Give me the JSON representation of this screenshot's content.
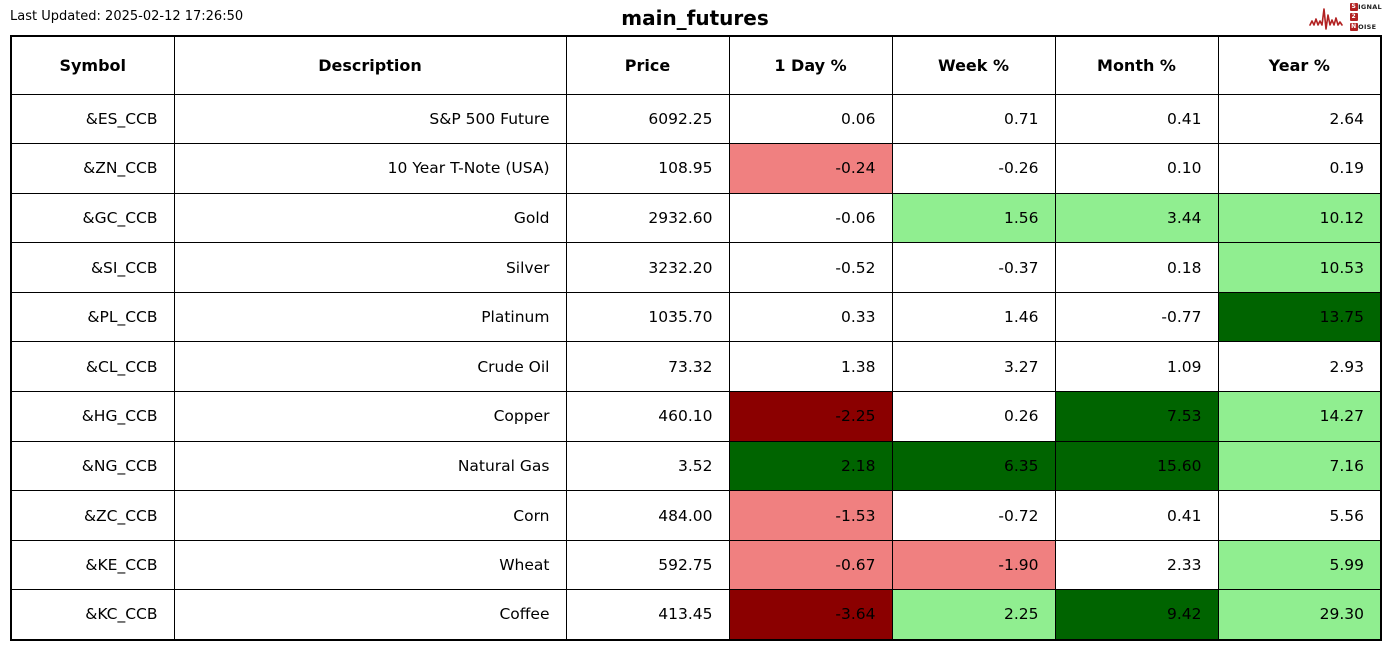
{
  "header": {
    "last_updated": "Last Updated: 2025-02-12 17:26:50",
    "logo": {
      "line1_box": "S",
      "line1_rest": "IGNAL",
      "line2_box": "2",
      "line3_box": "N",
      "line3_rest": "OISE"
    }
  },
  "colors": {
    "white": "#FFFFFF",
    "light_red": "#F08080",
    "dark_red": "#8B0000",
    "light_green": "#90EE90",
    "dark_green": "#006400",
    "logo_red": "#B22222",
    "border": "#000000"
  },
  "chart_data": {
    "type": "table",
    "title": "main_futures",
    "columns": [
      "Symbol",
      "Description",
      "Price",
      "1 Day %",
      "Week %",
      "Month %",
      "Year %"
    ],
    "value_columns": [
      "1 Day %",
      "Week %",
      "Month %",
      "Year %"
    ],
    "rows": [
      {
        "symbol": "&ES_CCB",
        "description": "S&P 500 Future",
        "price": "6092.25",
        "values": [
          "0.06",
          "0.71",
          "0.41",
          "2.64"
        ],
        "value_colors": [
          "white",
          "white",
          "white",
          "white"
        ]
      },
      {
        "symbol": "&ZN_CCB",
        "description": "10 Year T-Note (USA)",
        "price": "108.95",
        "values": [
          "-0.24",
          "-0.26",
          "0.10",
          "0.19"
        ],
        "value_colors": [
          "light_red",
          "white",
          "white",
          "white"
        ]
      },
      {
        "symbol": "&GC_CCB",
        "description": "Gold",
        "price": "2932.60",
        "values": [
          "-0.06",
          "1.56",
          "3.44",
          "10.12"
        ],
        "value_colors": [
          "white",
          "light_green",
          "light_green",
          "light_green"
        ]
      },
      {
        "symbol": "&SI_CCB",
        "description": "Silver",
        "price": "3232.20",
        "values": [
          "-0.52",
          "-0.37",
          "0.18",
          "10.53"
        ],
        "value_colors": [
          "white",
          "white",
          "white",
          "light_green"
        ]
      },
      {
        "symbol": "&PL_CCB",
        "description": "Platinum",
        "price": "1035.70",
        "values": [
          "0.33",
          "1.46",
          "-0.77",
          "13.75"
        ],
        "value_colors": [
          "white",
          "white",
          "white",
          "dark_green"
        ]
      },
      {
        "symbol": "&CL_CCB",
        "description": "Crude Oil",
        "price": "73.32",
        "values": [
          "1.38",
          "3.27",
          "1.09",
          "2.93"
        ],
        "value_colors": [
          "white",
          "white",
          "white",
          "white"
        ]
      },
      {
        "symbol": "&HG_CCB",
        "description": "Copper",
        "price": "460.10",
        "values": [
          "-2.25",
          "0.26",
          "7.53",
          "14.27"
        ],
        "value_colors": [
          "dark_red",
          "white",
          "dark_green",
          "light_green"
        ]
      },
      {
        "symbol": "&NG_CCB",
        "description": "Natural Gas",
        "price": "3.52",
        "values": [
          "2.18",
          "6.35",
          "15.60",
          "7.16"
        ],
        "value_colors": [
          "dark_green",
          "dark_green",
          "dark_green",
          "light_green"
        ]
      },
      {
        "symbol": "&ZC_CCB",
        "description": "Corn",
        "price": "484.00",
        "values": [
          "-1.53",
          "-0.72",
          "0.41",
          "5.56"
        ],
        "value_colors": [
          "light_red",
          "white",
          "white",
          "white"
        ]
      },
      {
        "symbol": "&KE_CCB",
        "description": "Wheat",
        "price": "592.75",
        "values": [
          "-0.67",
          "-1.90",
          "2.33",
          "5.99"
        ],
        "value_colors": [
          "light_red",
          "light_red",
          "white",
          "light_green"
        ]
      },
      {
        "symbol": "&KC_CCB",
        "description": "Coffee",
        "price": "413.45",
        "values": [
          "-3.64",
          "2.25",
          "9.42",
          "29.30"
        ],
        "value_colors": [
          "dark_red",
          "light_green",
          "dark_green",
          "light_green"
        ]
      }
    ]
  }
}
